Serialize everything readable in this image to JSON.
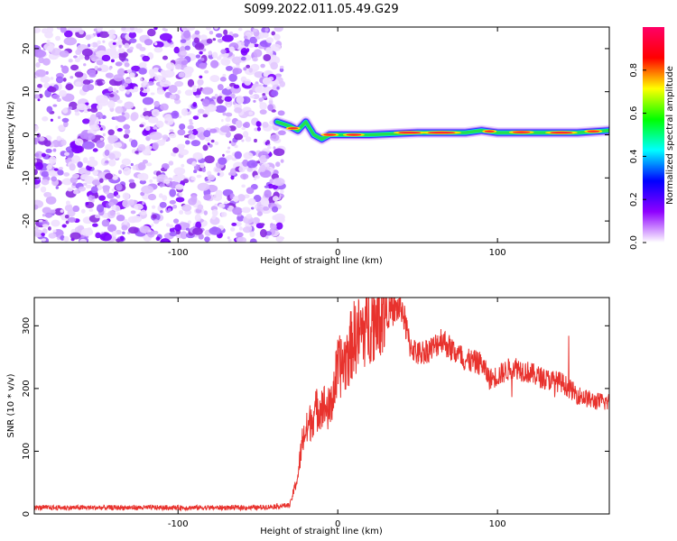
{
  "title": "S099.2022.011.05.49.G29",
  "chart_data": [
    {
      "type": "heatmap",
      "xlabel": "Height of straight line (km)",
      "ylabel": "Frequency (Hz)",
      "xlim": [
        -190,
        170
      ],
      "ylim": [
        -25,
        25
      ],
      "xticks": [
        -100,
        0,
        100
      ],
      "yticks": [
        -20,
        -10,
        0,
        10,
        20
      ],
      "grid": false,
      "colorbar": {
        "label": "Normalized spectral amplitude",
        "ticks": [
          "0.0",
          "0.2",
          "0.4",
          "0.6",
          "0.8"
        ],
        "range": [
          0,
          1
        ],
        "colors": [
          "#ffffff",
          "#8f00ff",
          "#0000ff",
          "#00ffff",
          "#00ff00",
          "#ffff00",
          "#ff0000",
          "#ff0066"
        ]
      },
      "noise_region_x": [
        -190,
        -38
      ],
      "ridge_points": [
        {
          "x": -38,
          "y": 3
        },
        {
          "x": -30,
          "y": 2
        },
        {
          "x": -25,
          "y": 1
        },
        {
          "x": -20,
          "y": 3
        },
        {
          "x": -15,
          "y": 0
        },
        {
          "x": -10,
          "y": -1
        },
        {
          "x": -5,
          "y": 0
        },
        {
          "x": 0,
          "y": 0
        },
        {
          "x": 20,
          "y": 0
        },
        {
          "x": 50,
          "y": 0.5
        },
        {
          "x": 80,
          "y": 0.5
        },
        {
          "x": 90,
          "y": 1
        },
        {
          "x": 100,
          "y": 0.5
        },
        {
          "x": 130,
          "y": 0.5
        },
        {
          "x": 150,
          "y": 0.5
        },
        {
          "x": 170,
          "y": 1
        }
      ]
    },
    {
      "type": "line",
      "xlabel": "Height of straight line (km)",
      "ylabel": "SNR (10 * v/v)",
      "xlim": [
        -190,
        170
      ],
      "ylim": [
        0,
        345
      ],
      "xticks": [
        -100,
        0,
        100
      ],
      "yticks": [
        0,
        100,
        200,
        300
      ],
      "grid": false,
      "series": [
        {
          "color": "#e8322d",
          "x": [
            -190,
            -150,
            -100,
            -50,
            -30,
            -25,
            -22,
            -20,
            -15,
            -10,
            -5,
            0,
            5,
            10,
            15,
            20,
            25,
            30,
            35,
            40,
            45,
            50,
            60,
            65,
            70,
            80,
            90,
            95,
            100,
            110,
            120,
            130,
            140,
            150,
            160,
            170
          ],
          "y": [
            10,
            10,
            10,
            10,
            14,
            60,
            120,
            130,
            160,
            175,
            165,
            230,
            245,
            280,
            290,
            305,
            320,
            320,
            325,
            330,
            270,
            255,
            265,
            280,
            265,
            245,
            240,
            215,
            220,
            235,
            225,
            215,
            210,
            190,
            180,
            178
          ]
        }
      ]
    }
  ]
}
